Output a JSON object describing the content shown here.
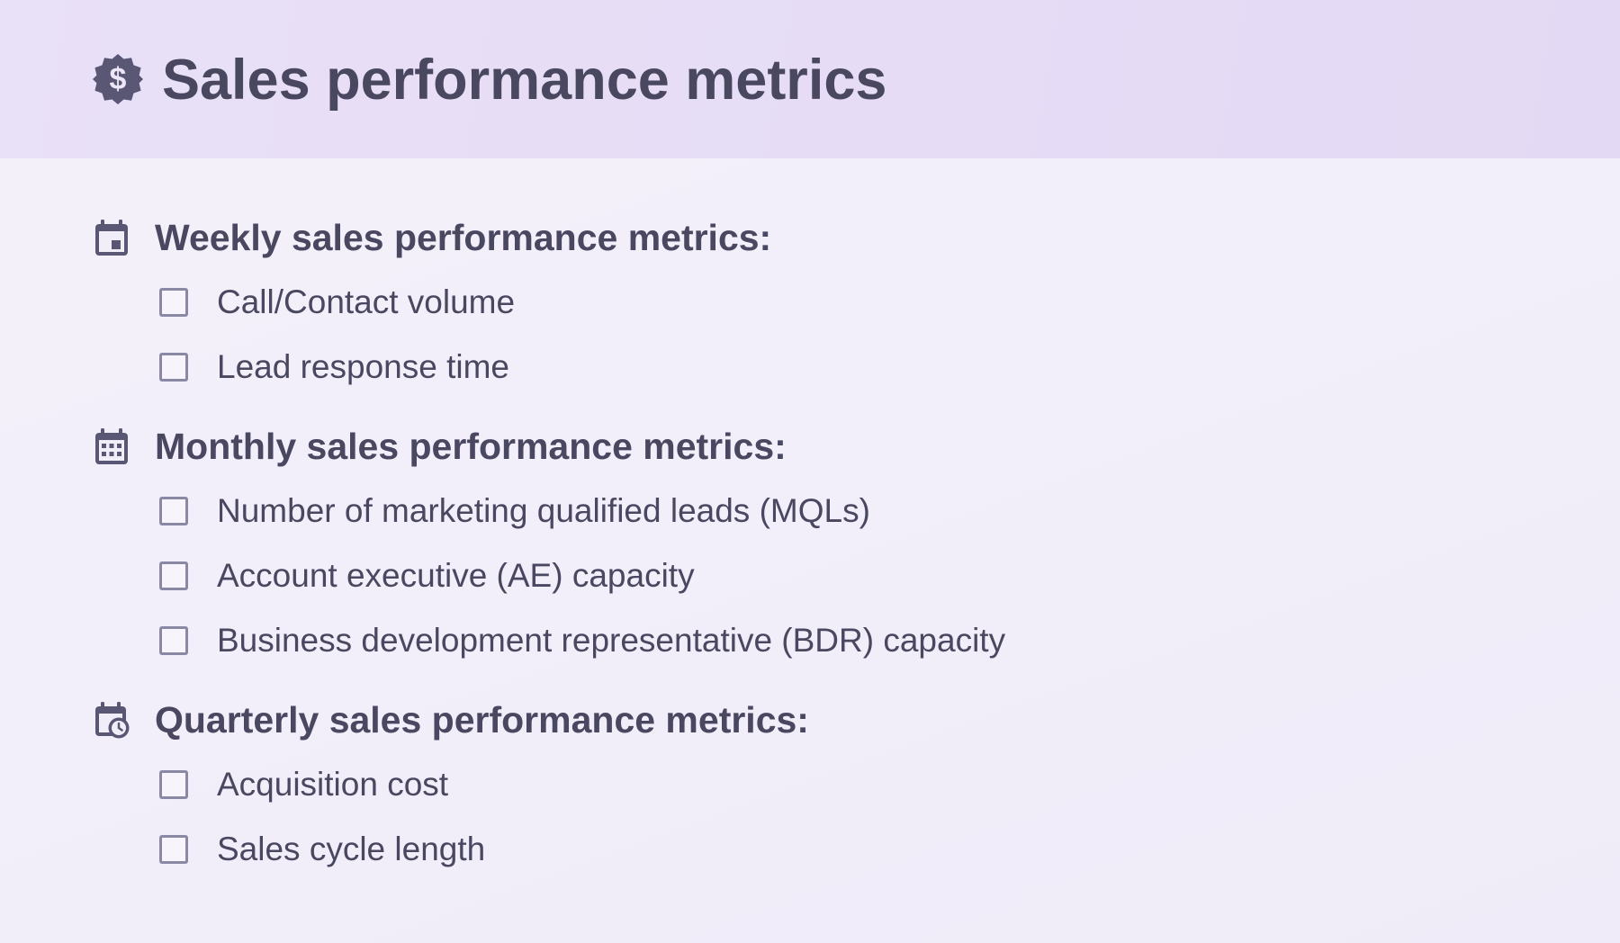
{
  "page": {
    "title": "Sales performance metrics",
    "icon": "dollar-badge-icon",
    "colors": {
      "header_bg": "#e7def6",
      "page_bg": "#f3f0fa",
      "text": "#4a4760",
      "icon": "#5a5775",
      "checkbox_border": "#8b88a3"
    }
  },
  "sections": [
    {
      "title": "Weekly sales performance metrics:",
      "icon": "calendar-event-icon",
      "items": [
        {
          "label": "Call/Contact volume",
          "checked": false
        },
        {
          "label": "Lead response time",
          "checked": false
        }
      ]
    },
    {
      "title": "Monthly sales performance metrics:",
      "icon": "calendar-grid-icon",
      "items": [
        {
          "label": "Number of marketing qualified leads (MQLs)",
          "checked": false
        },
        {
          "label": "Account executive (AE) capacity",
          "checked": false
        },
        {
          "label": "Business development representative (BDR) capacity",
          "checked": false
        }
      ]
    },
    {
      "title": "Quarterly sales performance metrics:",
      "icon": "calendar-clock-icon",
      "items": [
        {
          "label": "Acquisition cost",
          "checked": false
        },
        {
          "label": "Sales cycle length",
          "checked": false
        }
      ]
    }
  ]
}
